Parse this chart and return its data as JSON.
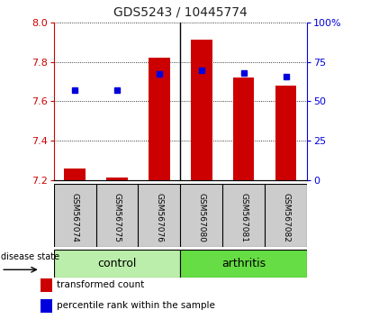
{
  "title": "GDS5243 / 10445774",
  "samples": [
    "GSM567074",
    "GSM567075",
    "GSM567076",
    "GSM567080",
    "GSM567081",
    "GSM567082"
  ],
  "bar_values": [
    7.26,
    7.215,
    7.82,
    7.91,
    7.72,
    7.68
  ],
  "bar_base": 7.2,
  "blue_dot_values": [
    7.655,
    7.655,
    7.74,
    7.755,
    7.745,
    7.725
  ],
  "ylim_left": [
    7.2,
    8.0
  ],
  "ylim_right": [
    0,
    100
  ],
  "yticks_left": [
    7.2,
    7.4,
    7.6,
    7.8,
    8.0
  ],
  "yticks_right": [
    0,
    25,
    50,
    75,
    100
  ],
  "bar_color": "#cc0000",
  "dot_color": "#0000dd",
  "left_tick_color": "#cc0000",
  "right_tick_color": "#0000dd",
  "groups": [
    {
      "label": "control",
      "indices": [
        0,
        1,
        2
      ],
      "color": "#bbeeaa"
    },
    {
      "label": "arthritis",
      "indices": [
        3,
        4,
        5
      ],
      "color": "#66dd44"
    }
  ],
  "disease_label": "disease state",
  "legend_bar_label": "transformed count",
  "legend_dot_label": "percentile rank within the sample",
  "bar_width": 0.5,
  "sample_box_color": "#cccccc",
  "plot_bg": "#ffffff"
}
